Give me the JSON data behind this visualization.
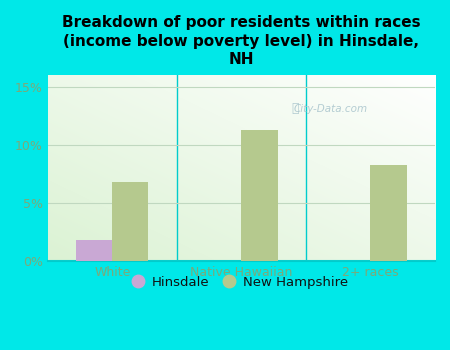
{
  "title": "Breakdown of poor residents within races\n(income below poverty level) in Hinsdale,\nNH",
  "categories": [
    "White",
    "Native Hawaiian",
    "2+ races"
  ],
  "hinsdale_values": [
    1.8,
    0,
    0
  ],
  "nh_values": [
    6.8,
    11.3,
    8.3
  ],
  "hinsdale_color": "#c9a8d4",
  "nh_color": "#b5c98e",
  "background_color": "#00e8e8",
  "plot_bg_color": "#dff0df",
  "yticks": [
    0,
    5,
    10,
    15
  ],
  "ytick_labels": [
    "0%",
    "5%",
    "10%",
    "15%"
  ],
  "ylim": [
    0,
    16
  ],
  "bar_width": 0.28,
  "title_fontsize": 11,
  "legend_labels": [
    "Hinsdale",
    "New Hampshire"
  ],
  "watermark": "City-Data.com",
  "tick_label_color": "#7aaa7a",
  "grid_color": "#c0d8c0",
  "axis_line_color": "#00cccc"
}
